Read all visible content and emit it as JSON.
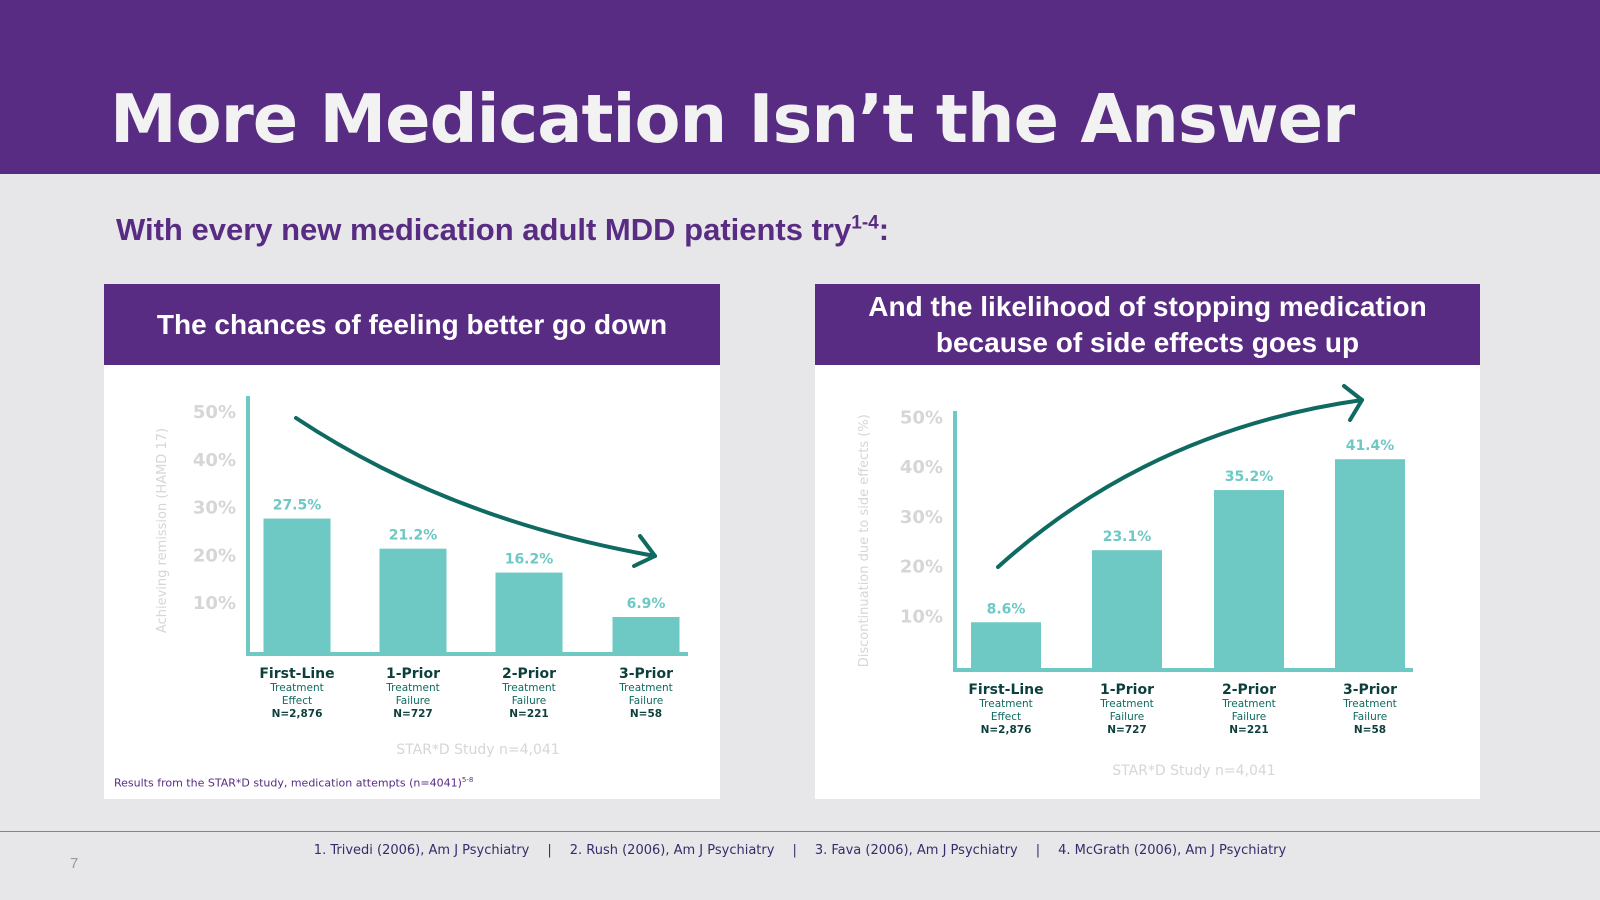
{
  "header": {
    "title": "More Medication Isn’t the Answer"
  },
  "subtitle": {
    "text": "With every new medication adult MDD patients try",
    "sup": "1-4",
    "suffix": ":"
  },
  "left_panel": {
    "heading": "The chances of feeling better go down",
    "note": "Results from the STAR*D study, medication attempts (n=4041)",
    "note_sup": "5-8"
  },
  "right_panel": {
    "heading": "And the likelihood of stopping medication because of side effects goes up"
  },
  "footer": {
    "references": [
      "1. Trivedi (2006), Am J Psychiatry",
      "2. Rush (2006), Am J Psychiatry",
      "3. Fava (2006), Am J Psychiatry",
      "4. McGrath (2006), Am J Psychiatry"
    ],
    "separator": "|",
    "page_number": "7"
  },
  "colors": {
    "purple": "#582c83",
    "bar": "#6ec8c4",
    "arrow": "#0f6a62",
    "muted": "#d6d6d6"
  },
  "chart_data": [
    {
      "type": "bar",
      "ylabel": "Achieving remission (HAMD 17)",
      "yticks": [
        "10%",
        "20%",
        "30%",
        "40%",
        "50%"
      ],
      "ytick_values": [
        10,
        20,
        30,
        40,
        50
      ],
      "ylim": [
        0,
        50
      ],
      "categories": [
        {
          "title": "First-Line",
          "line1": "Treatment",
          "line2": "Effect",
          "n": "N=2,876"
        },
        {
          "title": "1-Prior",
          "line1": "Treatment",
          "line2": "Failure",
          "n": "N=727"
        },
        {
          "title": "2-Prior",
          "line1": "Treatment",
          "line2": "Failure",
          "n": "N=221"
        },
        {
          "title": "3-Prior",
          "line1": "Treatment",
          "line2": "Failure",
          "n": "N=58"
        }
      ],
      "values": [
        27.5,
        21.2,
        16.2,
        6.9
      ],
      "labels": [
        "27.5%",
        "21.2%",
        "16.2%",
        "6.9%"
      ],
      "trend": "down",
      "caption": "STAR*D Study n=4,041"
    },
    {
      "type": "bar",
      "ylabel": "Discontinuation due to side effects (%)",
      "yticks": [
        "10%",
        "20%",
        "30%",
        "40%",
        "50%"
      ],
      "ytick_values": [
        10,
        20,
        30,
        40,
        50
      ],
      "ylim": [
        0,
        50
      ],
      "categories": [
        {
          "title": "First-Line",
          "line1": "Treatment",
          "line2": "Effect",
          "n": "N=2,876"
        },
        {
          "title": "1-Prior",
          "line1": "Treatment",
          "line2": "Failure",
          "n": "N=727"
        },
        {
          "title": "2-Prior",
          "line1": "Treatment",
          "line2": "Failure",
          "n": "N=221"
        },
        {
          "title": "3-Prior",
          "line1": "Treatment",
          "line2": "Failure",
          "n": "N=58"
        }
      ],
      "values": [
        8.6,
        23.1,
        35.2,
        41.4
      ],
      "labels": [
        "8.6%",
        "23.1%",
        "35.2%",
        "41.4%"
      ],
      "trend": "up",
      "caption": "STAR*D Study n=4,041"
    }
  ]
}
